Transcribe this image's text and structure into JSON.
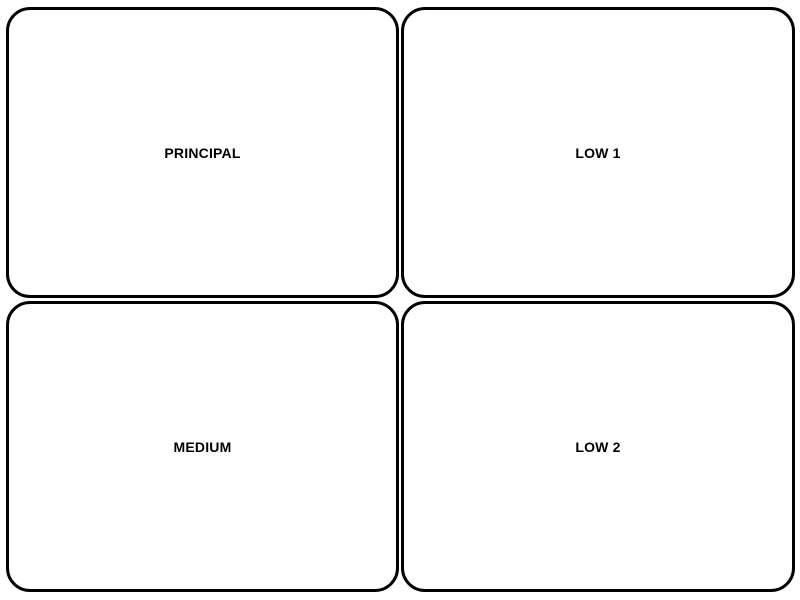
{
  "panels": [
    {
      "label": "PRINCIPAL"
    },
    {
      "label": "LOW 1"
    },
    {
      "label": "MEDIUM"
    },
    {
      "label": "LOW 2"
    }
  ],
  "colors": {
    "border": "#000000",
    "background": "#ffffff",
    "text": "#000000"
  }
}
